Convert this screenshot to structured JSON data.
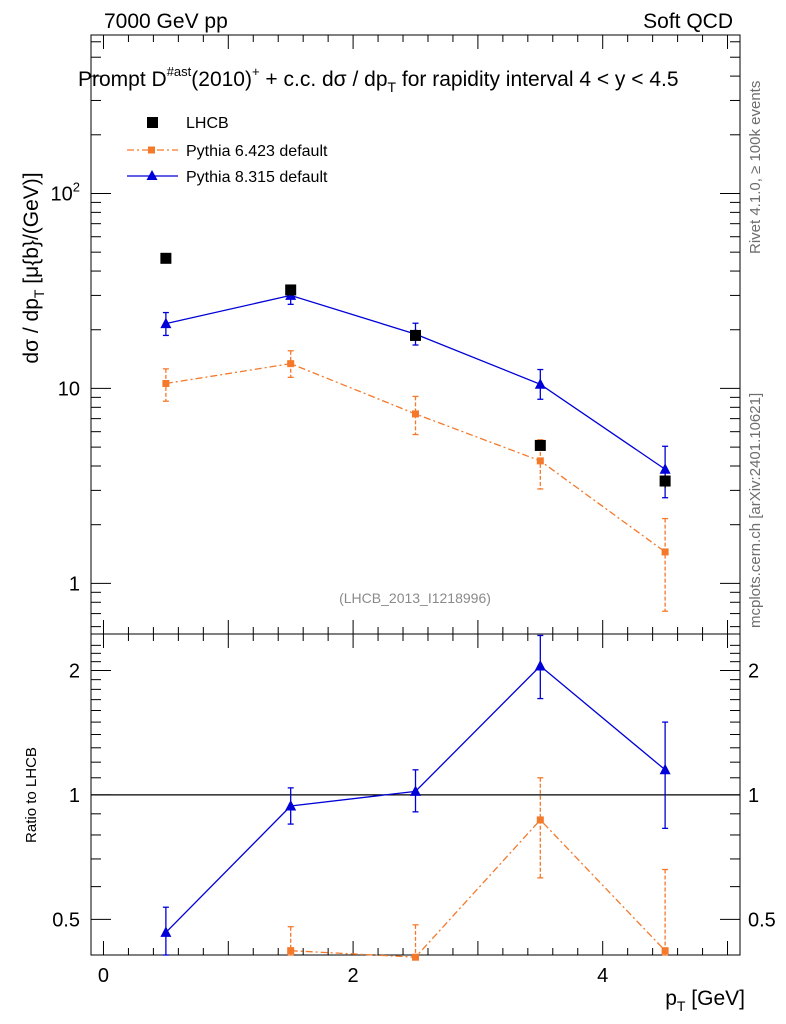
{
  "header": {
    "left": "7000 GeV pp",
    "right": "Soft QCD"
  },
  "title": {
    "prefix": "Prompt D",
    "sup1": "#ast",
    "mid": "(2010)",
    "sup2": "+",
    "rest": " + c.c.  dσ / dp",
    "sub": "T",
    "tail": " for rapidity interval 4 < y < 4.5"
  },
  "side_labels": {
    "rivet": "Rivet 4.1.0, ≥ 100k events",
    "mcplots": "mcplots.cern.ch [arXiv:2401.10621]"
  },
  "analysis_id": "(LHCB_2013_I1218996)",
  "colors": {
    "data": "#000000",
    "pythia6": "#f5792a",
    "pythia8": "#0000d8"
  },
  "chart_data": [
    {
      "type": "line",
      "panel": "main",
      "yscale": "log",
      "ylabel": "dσ / dp_T [μ{b}/(GeV)]",
      "ylim": [
        0.55,
        650
      ],
      "xlim": [
        -0.1,
        5.1
      ],
      "y_ticks": [
        {
          "value": 1,
          "label": "1"
        },
        {
          "value": 10,
          "label": "10"
        },
        {
          "value": 100,
          "label": "10^2"
        }
      ],
      "legend": [
        "LHCB",
        "Pythia 6.423 default",
        "Pythia 8.315 default"
      ],
      "series": [
        {
          "name": "LHCB",
          "style": "square",
          "x": [
            0.5,
            1.5,
            2.5,
            3.5,
            4.5
          ],
          "y": [
            46.5,
            32.0,
            18.7,
            5.1,
            3.35
          ],
          "err": [
            1.2,
            1.8,
            1.2,
            0.3,
            0.25
          ]
        },
        {
          "name": "Pythia 6.423 default",
          "style": "dashdot-square",
          "x": [
            0.5,
            1.5,
            2.5,
            3.5,
            4.5
          ],
          "y": [
            10.6,
            13.4,
            7.4,
            4.25,
            1.45
          ],
          "err_lo": [
            2.0,
            2.0,
            1.6,
            1.2,
            0.73
          ],
          "err_hi": [
            2.0,
            2.2,
            1.7,
            1.2,
            0.7
          ]
        },
        {
          "name": "Pythia 8.315 default",
          "style": "solid-triangle",
          "x": [
            0.5,
            1.5,
            2.5,
            3.5,
            4.5
          ],
          "y": [
            21.5,
            30.0,
            19.0,
            10.5,
            3.85
          ],
          "err_lo": [
            2.8,
            3.0,
            2.3,
            1.7,
            1.1
          ],
          "err_hi": [
            3.0,
            3.0,
            2.6,
            2.0,
            1.2
          ]
        }
      ]
    },
    {
      "type": "line",
      "panel": "ratio",
      "yscale": "log",
      "xlabel": "p_T [GeV]",
      "ylabel": "Ratio to LHCB",
      "ylim": [
        0.41,
        2.45
      ],
      "xlim": [
        -0.1,
        5.1
      ],
      "x_ticks": [
        0,
        2,
        4
      ],
      "y_ticks": [
        {
          "value": 0.5,
          "label": "0.5"
        },
        {
          "value": 1,
          "label": "1"
        },
        {
          "value": 2,
          "label": "2"
        }
      ],
      "reference_line": 1,
      "series": [
        {
          "name": "Pythia 6.423 default",
          "x": [
            1.5,
            2.5,
            3.5,
            4.5
          ],
          "y": [
            0.42,
            0.405,
            0.87,
            0.42
          ],
          "err_lo": [
            0.06,
            0.06,
            0.24,
            0.21
          ],
          "err_hi": [
            0.06,
            0.08,
            0.23,
            0.24
          ]
        },
        {
          "name": "Pythia 8.315 default",
          "x": [
            0.5,
            1.5,
            2.5,
            3.5,
            4.5
          ],
          "y": [
            0.465,
            0.94,
            1.02,
            2.05,
            1.15
          ],
          "err_lo": [
            0.06,
            0.09,
            0.11,
            0.34,
            0.32
          ],
          "err_hi": [
            0.07,
            0.1,
            0.13,
            0.38,
            0.35
          ]
        }
      ]
    }
  ]
}
